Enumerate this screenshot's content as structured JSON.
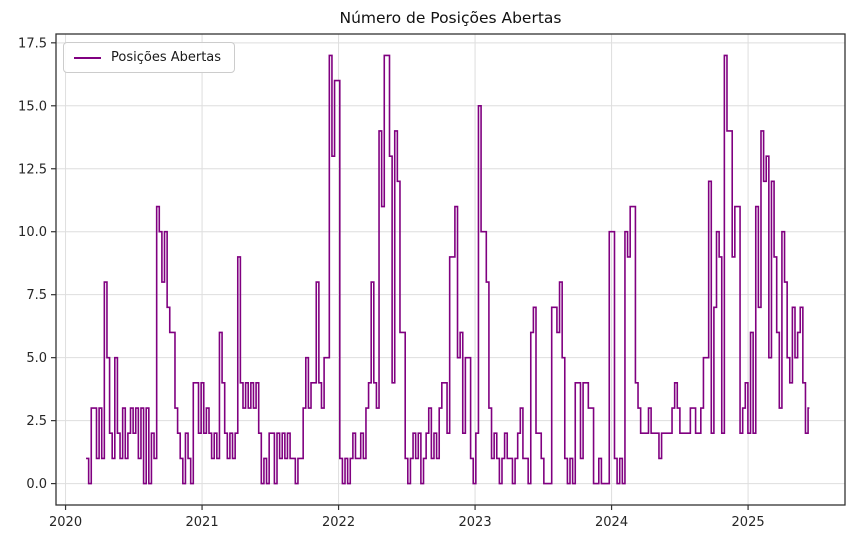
{
  "chart": {
    "legend": {
      "label": "Posições Abertas"
    }
  },
  "colors": {
    "line": "#800080",
    "grid": "#dedede",
    "spine": "#333333",
    "text": "#262626",
    "background": "#ffffff"
  },
  "chart_data": {
    "type": "line",
    "line_style": "steps-post",
    "title": "Número de Posições Abertas",
    "xlabel": "",
    "ylabel": "",
    "grid": true,
    "legend_position": "upper-left",
    "xlim": [
      2019.93,
      2025.71
    ],
    "ylim": [
      -0.85,
      17.85
    ],
    "x_ticks": [
      {
        "value": 2020,
        "label": "2020"
      },
      {
        "value": 2021,
        "label": "2021"
      },
      {
        "value": 2022,
        "label": "2022"
      },
      {
        "value": 2023,
        "label": "2023"
      },
      {
        "value": 2024,
        "label": "2024"
      },
      {
        "value": 2025,
        "label": "2025"
      }
    ],
    "y_ticks": [
      {
        "value": 0,
        "label": "0.0"
      },
      {
        "value": 2.5,
        "label": "2.5"
      },
      {
        "value": 5,
        "label": "5.0"
      },
      {
        "value": 7.5,
        "label": "7.5"
      },
      {
        "value": 10,
        "label": "10.0"
      },
      {
        "value": 12.5,
        "label": "12.5"
      },
      {
        "value": 15,
        "label": "15.0"
      },
      {
        "value": 17.5,
        "label": "17.5"
      }
    ],
    "series": [
      {
        "name": "Posições Abertas",
        "color": "#800080",
        "x_start": 2020.15,
        "x_step": 0.019165,
        "x_unit": "weeks (decimal years)",
        "values": [
          1,
          0,
          3,
          3,
          1,
          3,
          1,
          8,
          5,
          2,
          1,
          5,
          2,
          1,
          3,
          1,
          2,
          3,
          2,
          3,
          1,
          3,
          0,
          3,
          0,
          2,
          1,
          11,
          10,
          8,
          10,
          7,
          6,
          6,
          3,
          2,
          1,
          0,
          2,
          1,
          0,
          4,
          4,
          2,
          4,
          2,
          3,
          2,
          1,
          2,
          1,
          6,
          4,
          2,
          1,
          2,
          1,
          2,
          9,
          4,
          3,
          4,
          3,
          4,
          3,
          4,
          2,
          0,
          1,
          0,
          2,
          2,
          0,
          2,
          1,
          2,
          1,
          2,
          1,
          1,
          0,
          1,
          1,
          3,
          5,
          3,
          4,
          4,
          8,
          4,
          3,
          5,
          5,
          17,
          13,
          16,
          16,
          1,
          0,
          1,
          0,
          1,
          2,
          1,
          1,
          2,
          1,
          3,
          4,
          8,
          4,
          3,
          14,
          11,
          17,
          17,
          13,
          4,
          14,
          12,
          6,
          6,
          1,
          0,
          1,
          2,
          1,
          2,
          0,
          1,
          2,
          3,
          1,
          2,
          1,
          3,
          4,
          4,
          2,
          9,
          9,
          11,
          5,
          6,
          2,
          5,
          5,
          1,
          0,
          2,
          15,
          10,
          10,
          8,
          3,
          1,
          2,
          1,
          0,
          1,
          2,
          1,
          1,
          0,
          1,
          2,
          3,
          1,
          1,
          0,
          6,
          7,
          2,
          2,
          1,
          0,
          0,
          0,
          7,
          7,
          6,
          8,
          5,
          1,
          0,
          1,
          0,
          4,
          4,
          1,
          4,
          4,
          3,
          3,
          0,
          0,
          1,
          0,
          0,
          0,
          10,
          10,
          1,
          0,
          1,
          0,
          10,
          9,
          11,
          11,
          4,
          3,
          2,
          2,
          2,
          3,
          2,
          2,
          2,
          1,
          2,
          2,
          2,
          2,
          3,
          4,
          3,
          2,
          2,
          2,
          2,
          3,
          3,
          2,
          2,
          3,
          5,
          5,
          12,
          2,
          7,
          10,
          9,
          2,
          17,
          14,
          14,
          9,
          11,
          11,
          2,
          3,
          4,
          2,
          6,
          2,
          11,
          7,
          14,
          12,
          13,
          5,
          12,
          9,
          6,
          3,
          10,
          8,
          5,
          4,
          7,
          5,
          6,
          7,
          4,
          2,
          3
        ]
      }
    ]
  }
}
